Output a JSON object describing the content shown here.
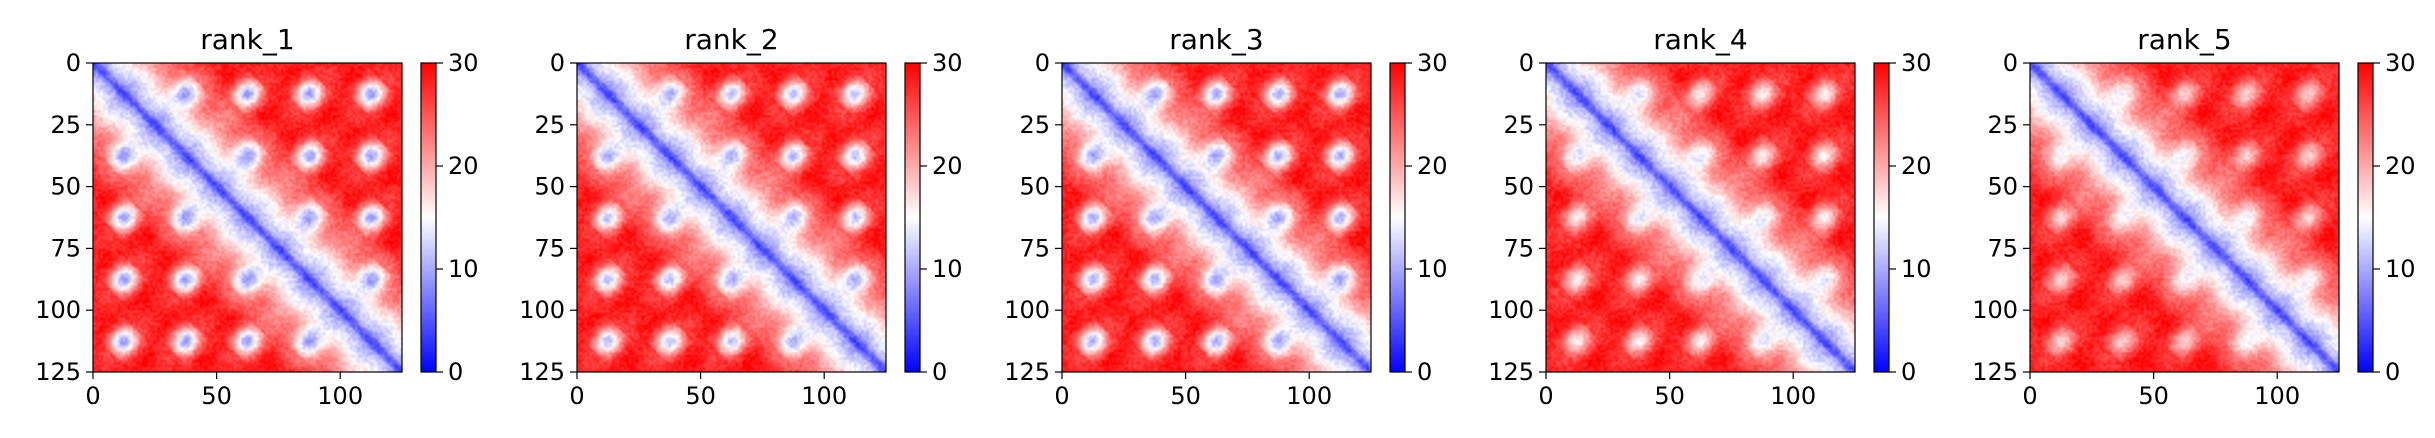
{
  "chart_data": [
    {
      "type": "heatmap",
      "title": "rank_1",
      "n": 125,
      "xlim": [
        0,
        125
      ],
      "ylim": [
        125,
        0
      ],
      "xticks": [
        0,
        50,
        100
      ],
      "yticks": [
        0,
        25,
        50,
        75,
        100,
        125
      ],
      "colorbar": {
        "min": 0,
        "max": 30,
        "ticks": [
          0,
          10,
          20,
          30
        ],
        "colormap": "bwr"
      },
      "offdiagonal_bands": [
        25,
        50,
        75,
        100
      ],
      "contact_strength": 1.0
    },
    {
      "type": "heatmap",
      "title": "rank_2",
      "n": 125,
      "xlim": [
        0,
        125
      ],
      "ylim": [
        125,
        0
      ],
      "xticks": [
        0,
        50,
        100
      ],
      "yticks": [
        0,
        25,
        50,
        75,
        100,
        125
      ],
      "colorbar": {
        "min": 0,
        "max": 30,
        "ticks": [
          0,
          10,
          20,
          30
        ],
        "colormap": "bwr"
      },
      "offdiagonal_bands": [
        25,
        50,
        75,
        100
      ],
      "contact_strength": 0.9
    },
    {
      "type": "heatmap",
      "title": "rank_3",
      "n": 125,
      "xlim": [
        0,
        125
      ],
      "ylim": [
        125,
        0
      ],
      "xticks": [
        0,
        50,
        100
      ],
      "yticks": [
        0,
        25,
        50,
        75,
        100,
        125
      ],
      "colorbar": {
        "min": 0,
        "max": 30,
        "ticks": [
          0,
          10,
          20,
          30
        ],
        "colormap": "bwr"
      },
      "offdiagonal_bands": [
        25,
        50,
        75,
        100
      ],
      "contact_strength": 0.95
    },
    {
      "type": "heatmap",
      "title": "rank_4",
      "n": 125,
      "xlim": [
        0,
        125
      ],
      "ylim": [
        125,
        0
      ],
      "xticks": [
        0,
        50,
        100
      ],
      "yticks": [
        0,
        25,
        50,
        75,
        100,
        125
      ],
      "colorbar": {
        "min": 0,
        "max": 30,
        "ticks": [
          0,
          10,
          20,
          30
        ],
        "colormap": "bwr"
      },
      "offdiagonal_bands": [
        25,
        50,
        75,
        100
      ],
      "contact_strength": 0.65
    },
    {
      "type": "heatmap",
      "title": "rank_5",
      "n": 125,
      "xlim": [
        0,
        125
      ],
      "ylim": [
        125,
        0
      ],
      "xticks": [
        0,
        50,
        100
      ],
      "yticks": [
        0,
        25,
        50,
        75,
        100,
        125
      ],
      "colorbar": {
        "min": 0,
        "max": 30,
        "ticks": [
          0,
          10,
          20,
          30
        ],
        "colormap": "bwr"
      },
      "offdiagonal_bands": [
        25,
        50,
        75,
        100
      ],
      "contact_strength": 0.55
    }
  ],
  "colors": {
    "low": "#0000ff",
    "mid": "#ffffff",
    "high": "#ff0000"
  }
}
